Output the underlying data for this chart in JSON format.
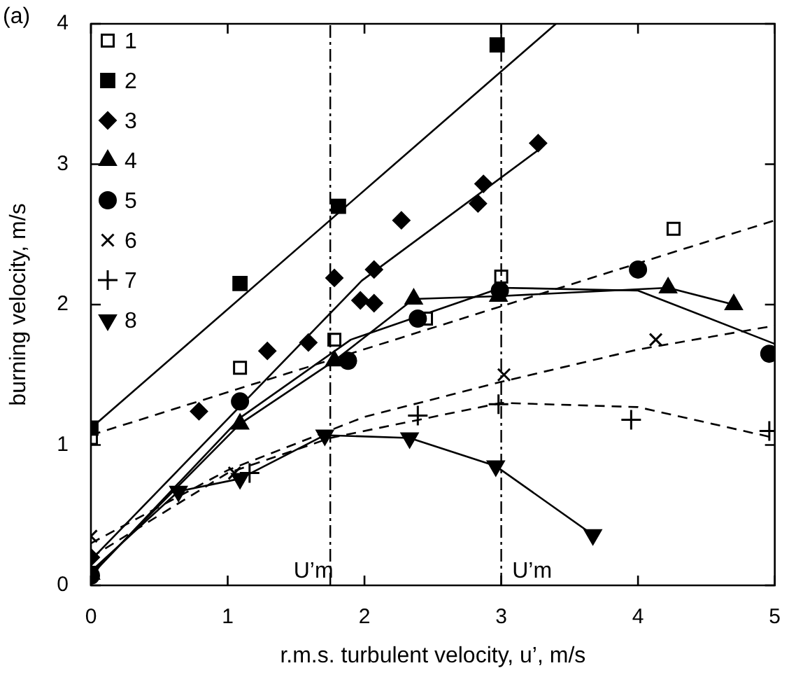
{
  "chart_data": {
    "type": "scatter",
    "annotations": [
      "(a)"
    ],
    "xlabel": "r.m.s. turbulent velocity, u’, m/s",
    "ylabel": "burning velocity, m/s",
    "xlim": [
      0,
      5
    ],
    "xticks": [
      0,
      1,
      2,
      3,
      4,
      5
    ],
    "ylim": [
      0,
      4
    ],
    "yticks": [
      0,
      1,
      2,
      3,
      4
    ],
    "grid": false,
    "legend": "top left",
    "ref_lines": [
      {
        "axis": "x",
        "value": 1.75,
        "label": "U’m",
        "line_style": "dashed"
      },
      {
        "axis": "x",
        "value": 3.0,
        "label": "U’m",
        "line_style": "dashed"
      }
    ],
    "series": [
      {
        "name": "1",
        "color": "#000000",
        "marker": "square-open",
        "x": [
          0,
          1.09,
          1.78,
          2.45,
          3.0,
          4.26
        ],
        "values": [
          1.05,
          1.55,
          1.75,
          1.9,
          2.2,
          2.54
        ]
      },
      {
        "name": "2",
        "color": "#000000",
        "marker": "square",
        "x": [
          0,
          1.09,
          1.81,
          2.97
        ],
        "values": [
          1.12,
          2.15,
          2.7,
          3.85
        ]
      },
      {
        "name": "3",
        "color": "#000000",
        "marker": "diamond",
        "x": [
          0,
          0.79,
          1.29,
          1.59,
          1.78,
          1.97,
          2.07,
          2.07,
          2.27,
          2.83,
          2.87,
          3.27
        ],
        "values": [
          0.2,
          1.24,
          1.67,
          1.73,
          2.19,
          2.03,
          2.25,
          2.01,
          2.6,
          2.72,
          2.86,
          3.15
        ]
      },
      {
        "name": "4",
        "type": "line",
        "color": "#000000",
        "marker": "triangle",
        "x": [
          0,
          1.09,
          1.78,
          2.36,
          2.98,
          4.22,
          4.7
        ],
        "values": [
          0.08,
          1.15,
          1.6,
          2.04,
          2.06,
          2.12,
          2.0
        ]
      },
      {
        "name": "5",
        "color": "#000000",
        "marker": "circle",
        "x": [
          0,
          1.09,
          1.88,
          2.39,
          2.99,
          4.0,
          4.96
        ],
        "values": [
          0.07,
          1.31,
          1.6,
          1.9,
          2.1,
          2.25,
          1.65
        ]
      },
      {
        "name": "6",
        "color": "#000000",
        "marker": "cross",
        "x": [
          0,
          1.05,
          3.02,
          4.13
        ],
        "values": [
          0.35,
          0.8,
          1.5,
          1.75
        ]
      },
      {
        "name": "7",
        "color": "#000000",
        "marker": "plus",
        "x": [
          1.16,
          2.39,
          2.98,
          3.95,
          4.96
        ],
        "values": [
          0.8,
          1.21,
          1.29,
          1.18,
          1.1
        ]
      },
      {
        "name": "8",
        "type": "line",
        "color": "#000000",
        "marker": "triangle-down",
        "x": [
          0,
          0.64,
          1.09,
          1.71,
          2.33,
          2.96,
          3.67
        ],
        "values": [
          0.1,
          0.67,
          0.76,
          1.07,
          1.05,
          0.85,
          0.36
        ]
      },
      {
        "type": "line",
        "color": "#000000",
        "marker": "none",
        "line_style": "dashed",
        "x": [
          0,
          5
        ],
        "values": [
          1.07,
          2.6
        ]
      },
      {
        "type": "line",
        "color": "#000000",
        "marker": "none",
        "x": [
          0,
          3.4
        ],
        "values": [
          1.12,
          4.0
        ]
      },
      {
        "type": "line",
        "color": "#000000",
        "marker": "none",
        "x": [
          0,
          1.98,
          3.27
        ],
        "values": [
          0.18,
          2.17,
          3.1
        ]
      },
      {
        "type": "line",
        "color": "#000000",
        "marker": "none",
        "x": [
          0,
          1.1,
          1.9,
          3.0,
          4.0,
          5.0
        ],
        "values": [
          0.07,
          1.2,
          1.75,
          2.12,
          2.1,
          1.72
        ]
      },
      {
        "type": "line",
        "color": "#000000",
        "marker": "none",
        "line_style": "dashed",
        "x": [
          0,
          1.0,
          2.0,
          3.0,
          4.0,
          5.0
        ],
        "values": [
          0.3,
          0.82,
          1.2,
          1.45,
          1.68,
          1.85
        ]
      },
      {
        "type": "line",
        "color": "#000000",
        "marker": "none",
        "line_style": "dashed",
        "x": [
          0,
          1.0,
          1.75,
          3.0,
          4.0,
          5.0
        ],
        "values": [
          0.2,
          0.8,
          1.05,
          1.3,
          1.27,
          1.05
        ]
      }
    ]
  }
}
